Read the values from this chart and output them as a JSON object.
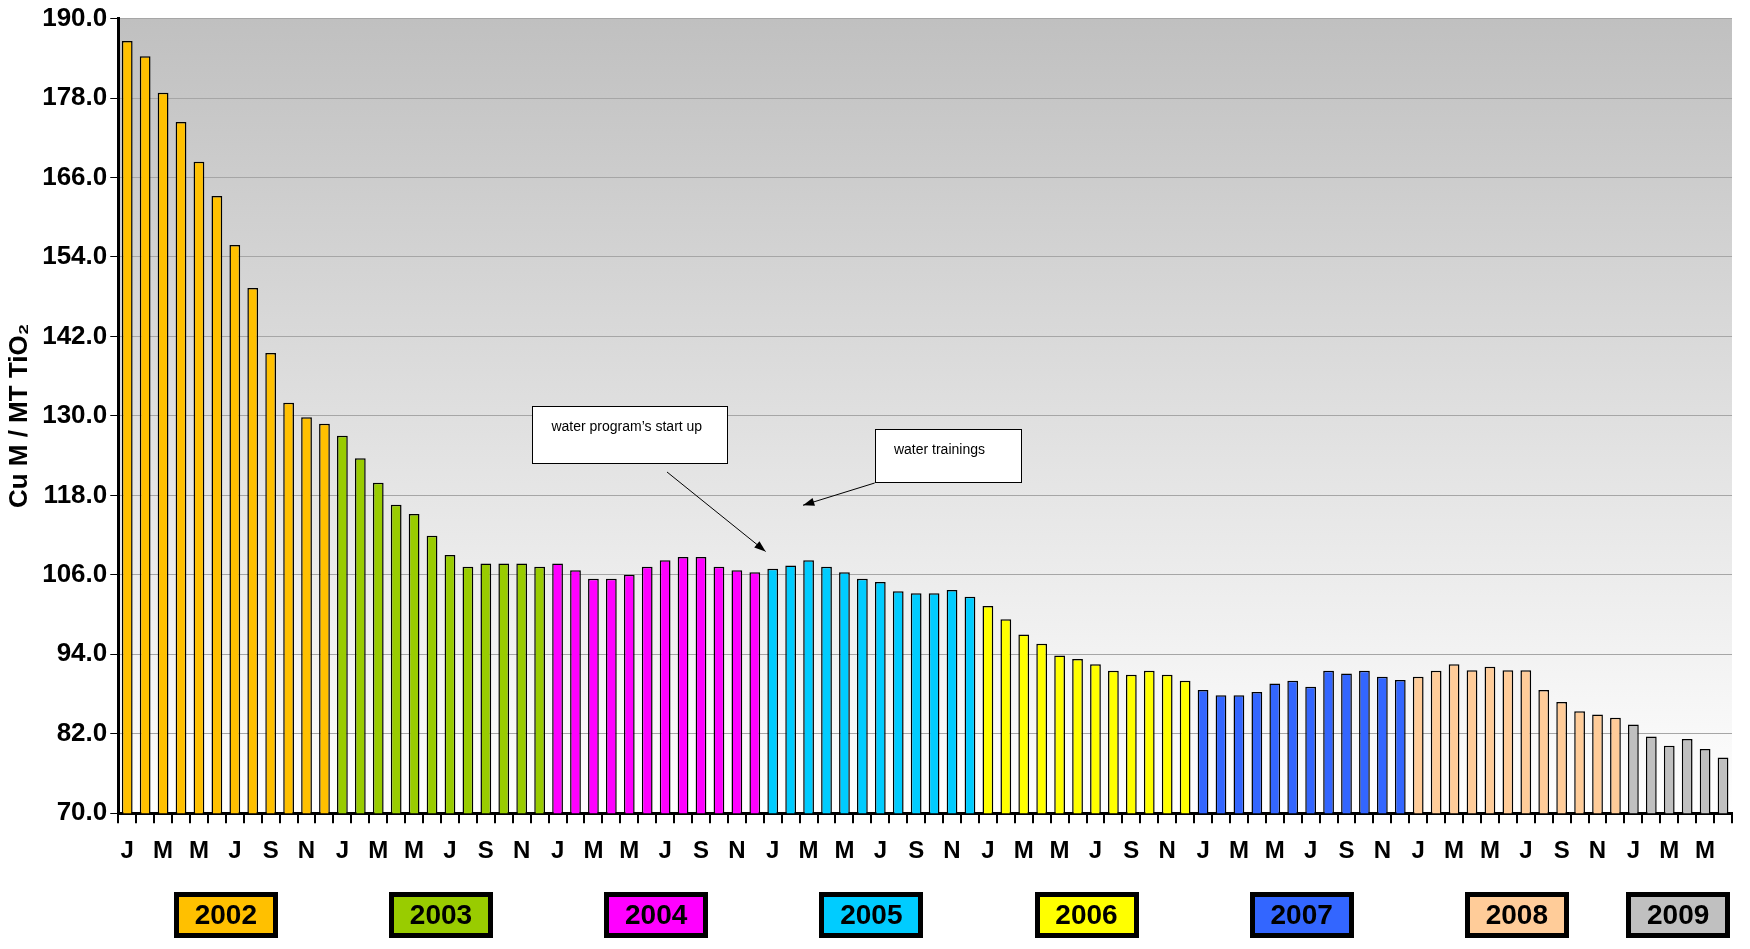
{
  "chart_data": {
    "type": "bar",
    "ylabel": "Cu M / MT TiO₂",
    "categories": [
      "J",
      null,
      "M",
      null,
      "M",
      null,
      "J",
      null,
      "S",
      null,
      "N",
      null,
      "J",
      null,
      "M",
      null,
      "M",
      null,
      "J",
      null,
      "S",
      null,
      "N",
      null,
      "J",
      null,
      "M",
      null,
      "M",
      null,
      "J",
      null,
      "S",
      null,
      "N",
      null,
      "J",
      null,
      "M",
      null,
      "M",
      null,
      "J",
      null,
      "S",
      null,
      "N",
      null,
      "J",
      null,
      "M",
      null,
      "M",
      null,
      "J",
      null,
      "S",
      null,
      "N",
      null,
      "J",
      null,
      "M",
      null,
      "M",
      null,
      "J",
      null,
      "S",
      null,
      "N",
      null,
      "J",
      null,
      "M",
      null,
      "M",
      null,
      "J",
      null,
      "S",
      null,
      "N",
      null,
      "J",
      null,
      "M",
      null,
      "M",
      null
    ],
    "stacked": true,
    "series": [
      {
        "name": "2002",
        "color": "#ffc000",
        "values": [
          186.6,
          184.3,
          178.8,
          174.4,
          168.4,
          163.2,
          155.8,
          149.3,
          139.5,
          132,
          129.8,
          128.8,
          null,
          null,
          null,
          null,
          null,
          null,
          null,
          null,
          null,
          null,
          null,
          null,
          null,
          null,
          null,
          null,
          null,
          null,
          null,
          null,
          null,
          null,
          null,
          null,
          null,
          null,
          null,
          null,
          null,
          null,
          null,
          null,
          null,
          null,
          null,
          null,
          null,
          null,
          null,
          null,
          null,
          null,
          null,
          null,
          null,
          null,
          null,
          null,
          null,
          null,
          null,
          null,
          null,
          null,
          null,
          null,
          null,
          null,
          null,
          null,
          null,
          null,
          null,
          null,
          null,
          null,
          null,
          null,
          null,
          null,
          null,
          null,
          null,
          null,
          null,
          null,
          null,
          null
        ]
      },
      {
        "name": "2003",
        "color": "#99cc00",
        "values": [
          null,
          null,
          null,
          null,
          null,
          null,
          null,
          null,
          null,
          null,
          null,
          null,
          127,
          123.6,
          119.9,
          116.6,
          115.2,
          111.9,
          109,
          107.2,
          107.7,
          107.7,
          107.7,
          107.2,
          null,
          null,
          null,
          null,
          null,
          null,
          null,
          null,
          null,
          null,
          null,
          null,
          null,
          null,
          null,
          null,
          null,
          null,
          null,
          null,
          null,
          null,
          null,
          null,
          null,
          null,
          null,
          null,
          null,
          null,
          null,
          null,
          null,
          null,
          null,
          null,
          null,
          null,
          null,
          null,
          null,
          null,
          null,
          null,
          null,
          null,
          null,
          null,
          null,
          null,
          null,
          null,
          null,
          null,
          null,
          null,
          null,
          null,
          null,
          null,
          null,
          null,
          null,
          null,
          null,
          null
        ]
      },
      {
        "name": "2004",
        "color": "#ff00ff",
        "values": [
          null,
          null,
          null,
          null,
          null,
          null,
          null,
          null,
          null,
          null,
          null,
          null,
          null,
          null,
          null,
          null,
          null,
          null,
          null,
          null,
          null,
          null,
          null,
          null,
          107.7,
          106.7,
          105.4,
          105.4,
          106,
          107.2,
          108.2,
          108.7,
          108.7,
          107.2,
          106.7,
          106.4,
          null,
          null,
          null,
          null,
          null,
          null,
          null,
          null,
          null,
          null,
          null,
          null,
          null,
          null,
          null,
          null,
          null,
          null,
          null,
          null,
          null,
          null,
          null,
          null,
          null,
          null,
          null,
          null,
          null,
          null,
          null,
          null,
          null,
          null,
          null,
          null,
          null,
          null,
          null,
          null,
          null,
          null,
          null,
          null,
          null,
          null,
          null,
          null,
          null,
          null,
          null,
          null,
          null,
          null
        ]
      },
      {
        "name": "2005",
        "color": "#00ccff",
        "values": [
          null,
          null,
          null,
          null,
          null,
          null,
          null,
          null,
          null,
          null,
          null,
          null,
          null,
          null,
          null,
          null,
          null,
          null,
          null,
          null,
          null,
          null,
          null,
          null,
          null,
          null,
          null,
          null,
          null,
          null,
          null,
          null,
          null,
          null,
          null,
          null,
          106.9,
          107.4,
          108.2,
          107.2,
          106.4,
          105.4,
          104.9,
          103.5,
          103.2,
          103.2,
          103.7,
          102.7,
          null,
          null,
          null,
          null,
          null,
          null,
          null,
          null,
          null,
          null,
          null,
          null,
          null,
          null,
          null,
          null,
          null,
          null,
          null,
          null,
          null,
          null,
          null,
          null,
          null,
          null,
          null,
          null,
          null,
          null,
          null,
          null,
          null,
          null,
          null,
          null,
          null,
          null,
          null,
          null,
          null,
          null
        ]
      },
      {
        "name": "2006",
        "color": "#ffff00",
        "values": [
          null,
          null,
          null,
          null,
          null,
          null,
          null,
          null,
          null,
          null,
          null,
          null,
          null,
          null,
          null,
          null,
          null,
          null,
          null,
          null,
          null,
          null,
          null,
          null,
          null,
          null,
          null,
          null,
          null,
          null,
          null,
          null,
          null,
          null,
          null,
          null,
          null,
          null,
          null,
          null,
          null,
          null,
          null,
          null,
          null,
          null,
          null,
          null,
          101.3,
          99.3,
          97,
          95.6,
          93.8,
          93.3,
          92.5,
          91.5,
          90.9,
          91.5,
          90.9,
          90,
          null,
          null,
          null,
          null,
          null,
          null,
          null,
          null,
          null,
          null,
          null,
          null,
          null,
          null,
          null,
          null,
          null,
          null,
          null,
          null,
          null,
          null,
          null,
          null,
          null,
          null,
          null,
          null,
          null,
          null
        ]
      },
      {
        "name": "2007",
        "color": "#3366ff",
        "values": [
          null,
          null,
          null,
          null,
          null,
          null,
          null,
          null,
          null,
          null,
          null,
          null,
          null,
          null,
          null,
          null,
          null,
          null,
          null,
          null,
          null,
          null,
          null,
          null,
          null,
          null,
          null,
          null,
          null,
          null,
          null,
          null,
          null,
          null,
          null,
          null,
          null,
          null,
          null,
          null,
          null,
          null,
          null,
          null,
          null,
          null,
          null,
          null,
          null,
          null,
          null,
          null,
          null,
          null,
          null,
          null,
          null,
          null,
          null,
          null,
          88.6,
          87.8,
          87.8,
          88.3,
          89.6,
          90,
          89.1,
          91.5,
          91.1,
          91.5,
          90.6,
          90.1,
          null,
          null,
          null,
          null,
          null,
          null,
          null,
          null,
          null,
          null,
          null,
          null,
          null,
          null,
          null,
          null,
          null,
          null
        ]
      },
      {
        "name": "2008",
        "color": "#ffcc99",
        "values": [
          null,
          null,
          null,
          null,
          null,
          null,
          null,
          null,
          null,
          null,
          null,
          null,
          null,
          null,
          null,
          null,
          null,
          null,
          null,
          null,
          null,
          null,
          null,
          null,
          null,
          null,
          null,
          null,
          null,
          null,
          null,
          null,
          null,
          null,
          null,
          null,
          null,
          null,
          null,
          null,
          null,
          null,
          null,
          null,
          null,
          null,
          null,
          null,
          null,
          null,
          null,
          null,
          null,
          null,
          null,
          null,
          null,
          null,
          null,
          null,
          null,
          null,
          null,
          null,
          null,
          null,
          null,
          null,
          null,
          null,
          null,
          null,
          90.6,
          91.5,
          92.5,
          91.6,
          92.1,
          91.6,
          91.6,
          88.6,
          86.8,
          85.4,
          84.9,
          84.4,
          null,
          null,
          null,
          null,
          null,
          null
        ]
      },
      {
        "name": "2009",
        "color": "#c0c0c0",
        "values": [
          null,
          null,
          null,
          null,
          null,
          null,
          null,
          null,
          null,
          null,
          null,
          null,
          null,
          null,
          null,
          null,
          null,
          null,
          null,
          null,
          null,
          null,
          null,
          null,
          null,
          null,
          null,
          null,
          null,
          null,
          null,
          null,
          null,
          null,
          null,
          null,
          null,
          null,
          null,
          null,
          null,
          null,
          null,
          null,
          null,
          null,
          null,
          null,
          null,
          null,
          null,
          null,
          null,
          null,
          null,
          null,
          null,
          null,
          null,
          null,
          null,
          null,
          null,
          null,
          null,
          null,
          null,
          null,
          null,
          null,
          null,
          null,
          null,
          null,
          null,
          null,
          null,
          null,
          null,
          null,
          null,
          null,
          null,
          null,
          83.4,
          81.6,
          80.2,
          81.2,
          79.7,
          78.4
        ]
      }
    ],
    "ylim": [
      70,
      190
    ],
    "yticks": [
      {
        "value": 70,
        "label": "70.0"
      },
      {
        "value": 82,
        "label": "82.0"
      },
      {
        "value": 94,
        "label": "94.0"
      },
      {
        "value": 106,
        "label": "106.0"
      },
      {
        "value": 118,
        "label": "118.0"
      },
      {
        "value": 130,
        "label": "130.0"
      },
      {
        "value": 142,
        "label": "142.0"
      },
      {
        "value": 154,
        "label": "154.0"
      },
      {
        "value": 166,
        "label": "166.0"
      },
      {
        "value": 178,
        "label": "178.0"
      },
      {
        "value": 190,
        "label": "190.0"
      }
    ],
    "grid": "y",
    "legend": "bottom",
    "annotations": [
      "water program’s start up",
      "water trainings"
    ]
  }
}
